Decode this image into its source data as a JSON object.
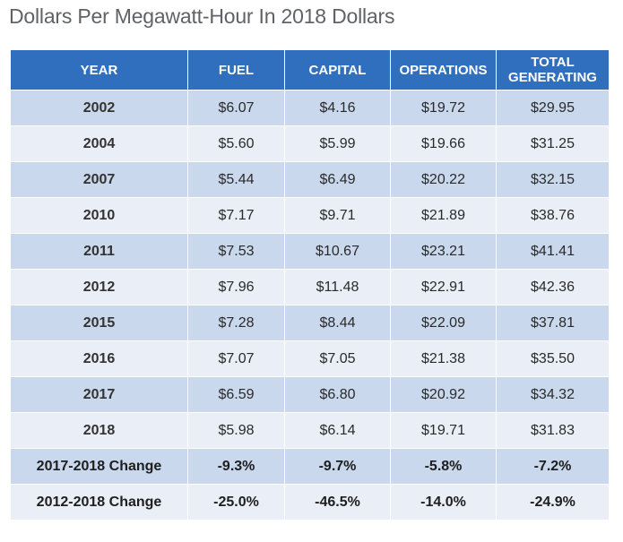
{
  "title": "Dollars Per Megawatt-Hour In 2018 Dollars",
  "colors": {
    "header_bg": "#2f6fbe",
    "row_odd_bg": "#c9d8ec",
    "row_even_bg": "#e9eef7",
    "title_text": "#5f6267"
  },
  "table": {
    "headers": [
      "YEAR",
      "FUEL",
      "CAPITAL",
      "OPERATIONS",
      "TOTAL GENERATING"
    ],
    "rows": [
      [
        "2002",
        "$6.07",
        "$4.16",
        "$19.72",
        "$29.95"
      ],
      [
        "2004",
        "$5.60",
        "$5.99",
        "$19.66",
        "$31.25"
      ],
      [
        "2007",
        "$5.44",
        "$6.49",
        "$20.22",
        "$32.15"
      ],
      [
        "2010",
        "$7.17",
        "$9.71",
        "$21.89",
        "$38.76"
      ],
      [
        "2011",
        "$7.53",
        "$10.67",
        "$23.21",
        "$41.41"
      ],
      [
        "2012",
        "$7.96",
        "$11.48",
        "$22.91",
        "$42.36"
      ],
      [
        "2015",
        "$7.28",
        "$8.44",
        "$22.09",
        "$37.81"
      ],
      [
        "2016",
        "$7.07",
        "$7.05",
        "$21.38",
        "$35.50"
      ],
      [
        "2017",
        "$6.59",
        "$6.80",
        "$20.92",
        "$34.32"
      ],
      [
        "2018",
        "$5.98",
        "$6.14",
        "$19.71",
        "$31.83"
      ],
      [
        "2017-2018 Change",
        "-9.3%",
        "-9.7%",
        "-5.8%",
        "-7.2%"
      ],
      [
        "2012-2018 Change",
        "-25.0%",
        "-46.5%",
        "-14.0%",
        "-24.9%"
      ]
    ]
  },
  "chart_data": {
    "type": "table",
    "title": "Dollars Per Megawatt-Hour In 2018 Dollars",
    "columns": [
      "YEAR",
      "FUEL",
      "CAPITAL",
      "OPERATIONS",
      "TOTAL GENERATING"
    ],
    "x": [
      2002,
      2004,
      2007,
      2010,
      2011,
      2012,
      2015,
      2016,
      2017,
      2018
    ],
    "series": [
      {
        "name": "FUEL",
        "values": [
          6.07,
          5.6,
          5.44,
          7.17,
          7.53,
          7.96,
          7.28,
          7.07,
          6.59,
          5.98
        ]
      },
      {
        "name": "CAPITAL",
        "values": [
          4.16,
          5.99,
          6.49,
          9.71,
          10.67,
          11.48,
          8.44,
          7.05,
          6.8,
          6.14
        ]
      },
      {
        "name": "OPERATIONS",
        "values": [
          19.72,
          19.66,
          20.22,
          21.89,
          23.21,
          22.91,
          22.09,
          21.38,
          20.92,
          19.71
        ]
      },
      {
        "name": "TOTAL GENERATING",
        "values": [
          29.95,
          31.25,
          32.15,
          38.76,
          41.41,
          42.36,
          37.81,
          35.5,
          34.32,
          31.83
        ]
      }
    ],
    "changes": [
      {
        "label": "2017-2018 Change",
        "values": [
          -9.3,
          -9.7,
          -5.8,
          -7.2
        ]
      },
      {
        "label": "2012-2018 Change",
        "values": [
          -25.0,
          -46.5,
          -14.0,
          -24.9
        ]
      }
    ]
  }
}
